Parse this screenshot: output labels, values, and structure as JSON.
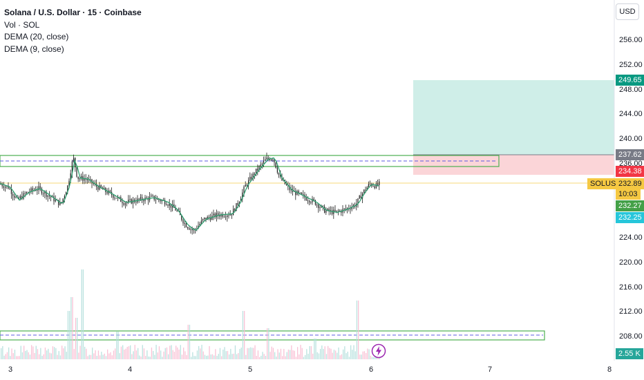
{
  "legend": {
    "title": "Solana / U.S. Dollar · 15 · Coinbase",
    "line2": "Vol · SOL",
    "line3": "DEMA (20, close)",
    "line4": "DEMA (9, close)"
  },
  "currency_button": "USD",
  "y_axis": {
    "ticks": [
      "256.00",
      "252.00",
      "248.00",
      "244.00",
      "240.00",
      "236.00",
      "224.00",
      "220.00",
      "216.00",
      "212.00",
      "208.00"
    ],
    "tick_values": [
      256,
      252,
      248,
      244,
      240,
      236,
      224,
      220,
      216,
      212,
      208
    ]
  },
  "x_axis": {
    "ticks": [
      "3",
      "4",
      "5",
      "6",
      "7",
      "8"
    ]
  },
  "price_tags": {
    "target": "249.65",
    "entry": "237.62",
    "stop": "234.38",
    "symbol": "SOLUSD",
    "last": "232.89",
    "countdown": "10:03",
    "dema20": "232.27",
    "dema9": "232.25",
    "volume": "2.55 K"
  },
  "colors": {
    "up": "#26a69a",
    "down": "#ef5350",
    "target_zone": "#cfeee8",
    "stop_zone": "#fbd5d8",
    "box_border": "#4caf50",
    "dashed": "#5b5be0",
    "last_price": "#f5c842",
    "entry_tag": "#787b86",
    "stop_tag": "#f23645",
    "target_tag": "#089981",
    "dema20_tag": "#43a047",
    "dema9_tag": "#26c6da"
  },
  "icons": {
    "bolt": "lightning-bolt-icon"
  }
}
